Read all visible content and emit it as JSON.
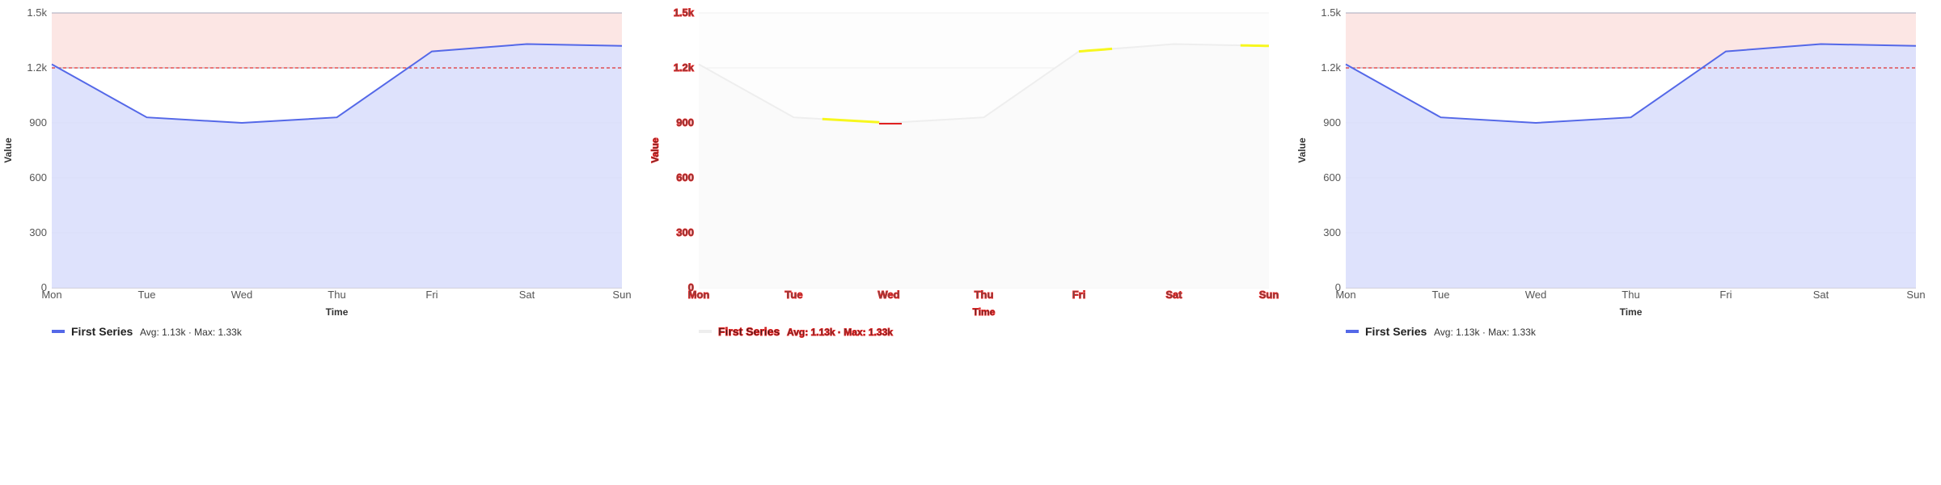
{
  "chart_data": [
    {
      "type": "area",
      "style": "normal",
      "x": [
        "Mon",
        "Tue",
        "Wed",
        "Thu",
        "Fri",
        "Sat",
        "Sun"
      ],
      "series": [
        {
          "name": "First Series",
          "values": [
            1220,
            930,
            900,
            930,
            1290,
            1330,
            1320
          ]
        }
      ],
      "xlabel": "Time",
      "ylabel": "Value",
      "ylim": [
        0,
        1500
      ],
      "yticks": [
        0,
        300,
        600,
        900,
        1200,
        1500
      ],
      "ytick_labels": [
        "0",
        "300",
        "600",
        "900",
        "1.2k",
        "1.5k"
      ],
      "threshold": 1200,
      "grid": true,
      "legend_position": "bottom-left",
      "legend_stats": "Avg: 1.13k · Max: 1.33k",
      "colors": {
        "line": "#5468e8",
        "area": "#dce0fc",
        "threshold_zone": "#fce6e4",
        "threshold_line": "#e03131"
      }
    },
    {
      "type": "area",
      "style": "distorted",
      "x": [
        "Mon",
        "Tue",
        "Wed",
        "Thu",
        "Fri",
        "Sat",
        "Sun"
      ],
      "series": [
        {
          "name": "First Series",
          "values": [
            1220,
            930,
            900,
            930,
            1290,
            1330,
            1320
          ]
        }
      ],
      "xlabel": "Time",
      "ylabel": "Value",
      "ylim": [
        0,
        1500
      ],
      "yticks": [
        0,
        300,
        600,
        900,
        1200,
        1500
      ],
      "ytick_labels": [
        "0",
        "300",
        "600",
        "900",
        "1.2k",
        "1.5k"
      ],
      "threshold": 1200,
      "grid": true,
      "legend_position": "bottom-left",
      "legend_stats": "Avg: 1.13k · Max: 1.33k",
      "colors": {
        "line": "#eeeeee",
        "area": "#fafafa",
        "highlight": "#f7f71e",
        "text": "#f5e012",
        "text_outline": "#e02020"
      }
    },
    {
      "type": "area",
      "style": "normal",
      "x": [
        "Mon",
        "Tue",
        "Wed",
        "Thu",
        "Fri",
        "Sat",
        "Sun"
      ],
      "series": [
        {
          "name": "First Series",
          "values": [
            1220,
            930,
            900,
            930,
            1290,
            1330,
            1320
          ]
        }
      ],
      "xlabel": "Time",
      "ylabel": "Value",
      "ylim": [
        0,
        1500
      ],
      "yticks": [
        0,
        300,
        600,
        900,
        1200,
        1500
      ],
      "ytick_labels": [
        "0",
        "300",
        "600",
        "900",
        "1.2k",
        "1.5k"
      ],
      "threshold": 1200,
      "grid": true,
      "legend_position": "bottom-left",
      "legend_stats": "Avg: 1.13k · Max: 1.33k",
      "colors": {
        "line": "#5468e8",
        "area": "#dce0fc",
        "threshold_zone": "#fce6e4",
        "threshold_line": "#e03131"
      }
    }
  ]
}
